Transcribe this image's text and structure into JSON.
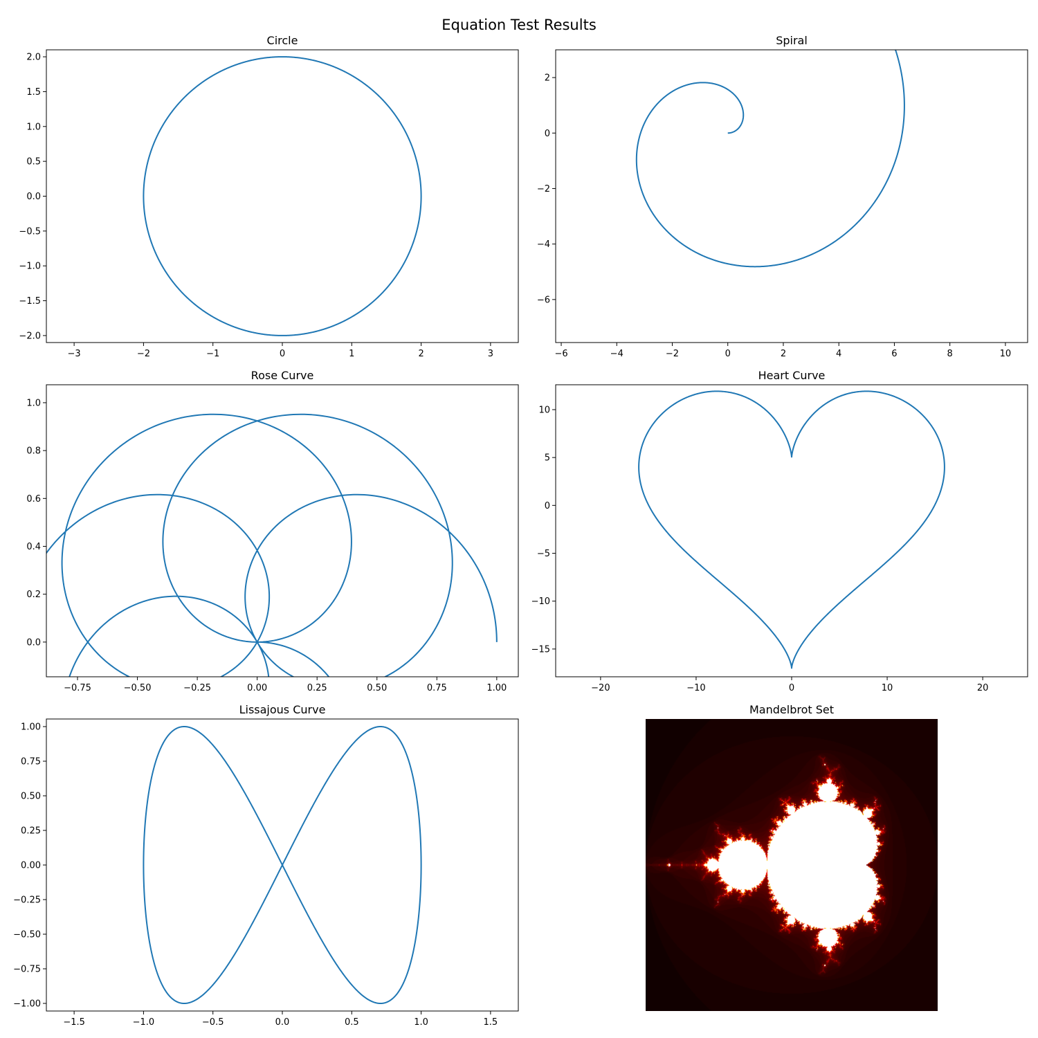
{
  "figure": {
    "title": "Equation Test Results"
  },
  "chart_data": [
    {
      "type": "line",
      "title": "Circle",
      "equation": "x=2cos(t), y=2sin(t)",
      "xlim": [
        -3.4,
        3.4
      ],
      "ylim": [
        -2.1,
        2.1
      ],
      "xticks": [
        -3,
        -2,
        -1,
        0,
        1,
        2,
        3
      ],
      "xtick_labels": [
        "−3",
        "−2",
        "−1",
        "0",
        "1",
        "2",
        "3"
      ],
      "yticks": [
        -2.0,
        -1.5,
        -1.0,
        -0.5,
        0.0,
        0.5,
        1.0,
        1.5,
        2.0
      ],
      "ytick_labels": [
        "−2.0",
        "−1.5",
        "−1.0",
        "−0.5",
        "0.0",
        "0.5",
        "1.0",
        "1.5",
        "2.0"
      ],
      "color": "#1f77b4",
      "grid": false
    },
    {
      "type": "line",
      "title": "Spiral",
      "equation": "x=t cos(t), y=t sin(t), t in [0, 3π]",
      "xlim": [
        -6.2,
        10.8
      ],
      "ylim": [
        -7.55,
        3.0
      ],
      "xticks": [
        -6,
        -4,
        -2,
        0,
        2,
        4,
        6,
        8,
        10
      ],
      "xtick_labels": [
        "−6",
        "−4",
        "−2",
        "0",
        "2",
        "4",
        "6",
        "8",
        "10"
      ],
      "yticks": [
        -6,
        -4,
        -2,
        0,
        2
      ],
      "ytick_labels": [
        "−6",
        "−4",
        "−2",
        "0",
        "2"
      ],
      "color": "#1f77b4",
      "grid": false
    },
    {
      "type": "line",
      "title": "Rose Curve",
      "equation": "r=cos(0.75t), x=r cos(t), y=r sin(t), t in [0, 6π]",
      "xlim": [
        -0.88,
        1.09
      ],
      "ylim": [
        -0.145,
        1.075
      ],
      "xticks": [
        -0.75,
        -0.5,
        -0.25,
        0.0,
        0.25,
        0.5,
        0.75,
        1.0
      ],
      "xtick_labels": [
        "−0.75",
        "−0.50",
        "−0.25",
        "0.00",
        "0.25",
        "0.50",
        "0.75",
        "1.00"
      ],
      "yticks": [
        0.0,
        0.2,
        0.4,
        0.6,
        0.8,
        1.0
      ],
      "ytick_labels": [
        "0.0",
        "0.2",
        "0.4",
        "0.6",
        "0.8",
        "1.0"
      ],
      "color": "#1f77b4",
      "grid": false
    },
    {
      "type": "line",
      "title": "Heart Curve",
      "equation": "x=16sin³t, y=13cos t−5cos2t−2cos3t−cos4t",
      "xlim": [
        -24.7,
        24.7
      ],
      "ylim": [
        -17.9,
        12.6
      ],
      "xticks": [
        -20,
        -10,
        0,
        10,
        20
      ],
      "xtick_labels": [
        "−20",
        "−10",
        "0",
        "10",
        "20"
      ],
      "yticks": [
        -15,
        -10,
        -5,
        0,
        5,
        10
      ],
      "ytick_labels": [
        "−15",
        "−10",
        "−5",
        "0",
        "5",
        "10"
      ],
      "color": "#1f77b4",
      "grid": false
    },
    {
      "type": "line",
      "title": "Lissajous Curve",
      "equation": "x=cos(t), y=sin(2t)",
      "xlim": [
        -1.7,
        1.7
      ],
      "ylim": [
        -1.055,
        1.055
      ],
      "xticks": [
        -1.5,
        -1.0,
        -0.5,
        0.0,
        0.5,
        1.0,
        1.5
      ],
      "xtick_labels": [
        "−1.5",
        "−1.0",
        "−0.5",
        "0.0",
        "0.5",
        "1.0",
        "1.5"
      ],
      "yticks": [
        -1.0,
        -0.75,
        -0.5,
        -0.25,
        0.0,
        0.25,
        0.5,
        0.75,
        1.0
      ],
      "ytick_labels": [
        "−1.00",
        "−0.75",
        "−0.50",
        "−0.25",
        "0.00",
        "0.25",
        "0.50",
        "0.75",
        "1.00"
      ],
      "color": "#1f77b4",
      "grid": false
    },
    {
      "type": "heatmap",
      "title": "Mandelbrot Set",
      "colormap": "hot",
      "re_range": [
        -2.0,
        1.0
      ],
      "im_range": [
        -1.5,
        1.5
      ],
      "max_iter": 100,
      "axes": "off"
    }
  ]
}
